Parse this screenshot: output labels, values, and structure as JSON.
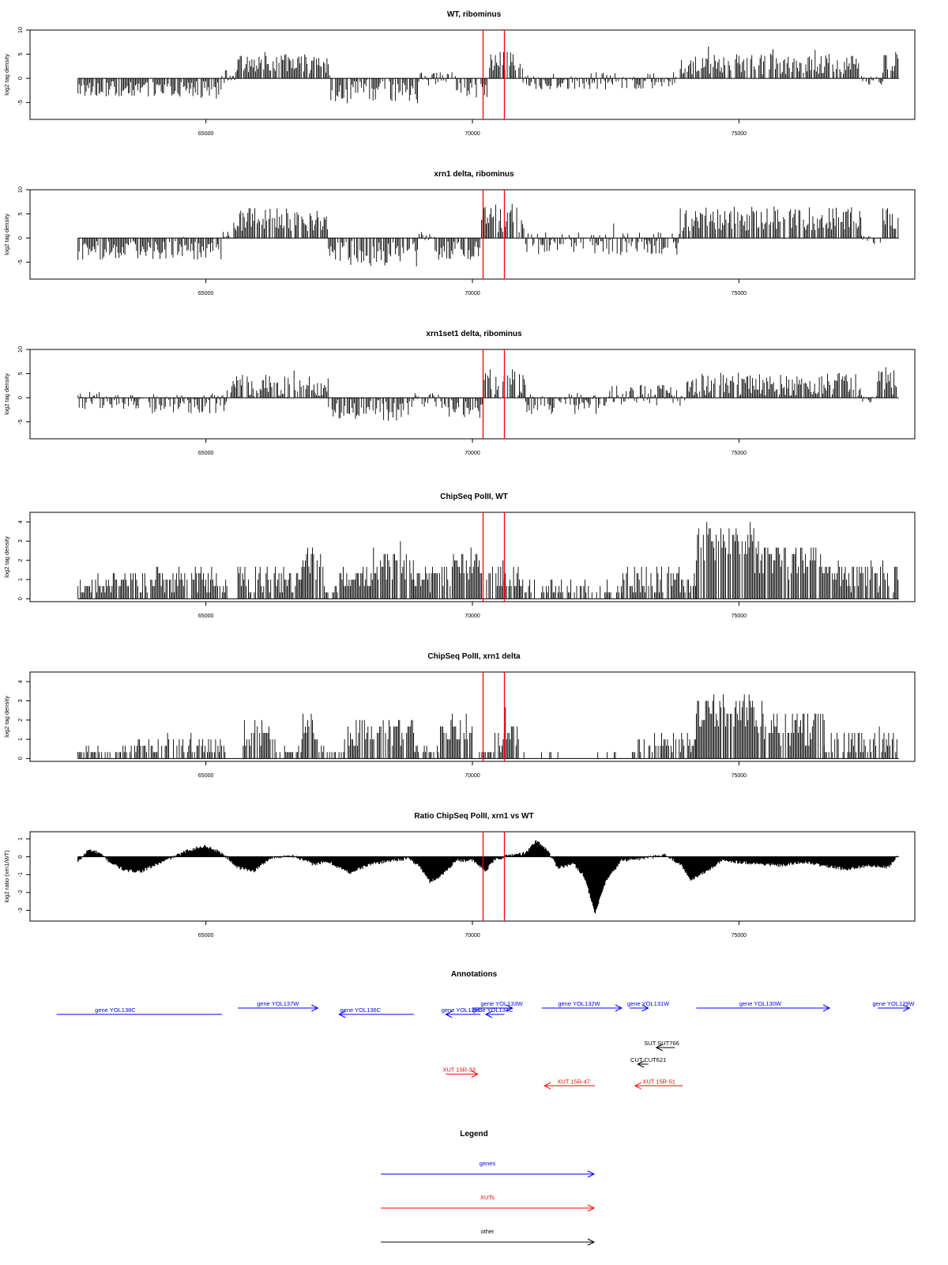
{
  "colors": {
    "bars": "#000000",
    "marker": "#ff0000",
    "genes": "#0000ff",
    "xuts": "#ff0000",
    "other": "#000000"
  },
  "chart_data": [
    {
      "type": "bar",
      "title": "WT, ribominus",
      "ylabel": "log2 tag density",
      "xlim": [
        61700,
        78300
      ],
      "ylim": [
        -8.5,
        10
      ],
      "yticks": [
        -5,
        0,
        5,
        10
      ],
      "xticks": [
        65000,
        70000,
        75000
      ],
      "markers": [
        70200,
        70600
      ],
      "segments": [
        {
          "start": 62600,
          "end": 65300,
          "mean": -2.2,
          "amp": 1.6
        },
        {
          "start": 65300,
          "end": 65600,
          "mean": 0.6,
          "amp": 1.2
        },
        {
          "start": 65600,
          "end": 67300,
          "mean": 3.0,
          "amp": 2.0
        },
        {
          "start": 67300,
          "end": 69000,
          "mean": -3.0,
          "amp": 2.4
        },
        {
          "start": 69000,
          "end": 69700,
          "mean": -0.2,
          "amp": 1.5
        },
        {
          "start": 69700,
          "end": 70300,
          "mean": -2.0,
          "amp": 2.0
        },
        {
          "start": 70300,
          "end": 70950,
          "mean": 3.0,
          "amp": 2.5
        },
        {
          "start": 70950,
          "end": 72300,
          "mean": -0.5,
          "amp": 1.8
        },
        {
          "start": 72300,
          "end": 73900,
          "mean": -0.5,
          "amp": 1.8
        },
        {
          "start": 73900,
          "end": 77300,
          "mean": 3.0,
          "amp": 2.2
        },
        {
          "start": 77300,
          "end": 77700,
          "mean": -0.4,
          "amp": 1.0
        },
        {
          "start": 77700,
          "end": 78000,
          "mean": 3.5,
          "amp": 2.4
        }
      ]
    },
    {
      "type": "bar",
      "title": "xrn1 delta, ribominus",
      "ylabel": "log2 tag density",
      "xlim": [
        61700,
        78300
      ],
      "ylim": [
        -8.5,
        10
      ],
      "yticks": [
        -5,
        0,
        5,
        10
      ],
      "xticks": [
        65000,
        70000,
        75000
      ],
      "markers": [
        70200,
        70600
      ],
      "segments": [
        {
          "start": 62600,
          "end": 65300,
          "mean": -2.6,
          "amp": 2.0
        },
        {
          "start": 65300,
          "end": 65500,
          "mean": 0.8,
          "amp": 1.2
        },
        {
          "start": 65500,
          "end": 67300,
          "mean": 3.8,
          "amp": 2.4
        },
        {
          "start": 67300,
          "end": 69000,
          "mean": -3.4,
          "amp": 2.6
        },
        {
          "start": 69000,
          "end": 69300,
          "mean": 0.3,
          "amp": 1.0
        },
        {
          "start": 69300,
          "end": 70150,
          "mean": -2.6,
          "amp": 2.0
        },
        {
          "start": 70150,
          "end": 71000,
          "mean": 4.2,
          "amp": 3.0
        },
        {
          "start": 71000,
          "end": 73900,
          "mean": -1.2,
          "amp": 2.4
        },
        {
          "start": 73900,
          "end": 77300,
          "mean": 4.0,
          "amp": 2.6
        },
        {
          "start": 77300,
          "end": 77700,
          "mean": -0.5,
          "amp": 1.0
        },
        {
          "start": 77700,
          "end": 78000,
          "mean": 4.0,
          "amp": 2.4
        }
      ]
    },
    {
      "type": "bar",
      "title": "xrn1set1 delta, ribominus",
      "ylabel": "log2 tag density",
      "xlim": [
        61700,
        78300
      ],
      "ylim": [
        -8.5,
        10
      ],
      "yticks": [
        -5,
        0,
        5,
        10
      ],
      "xticks": [
        65000,
        70000,
        75000
      ],
      "markers": [
        70200,
        70600
      ],
      "segments": [
        {
          "start": 62600,
          "end": 63600,
          "mean": -0.6,
          "amp": 1.8
        },
        {
          "start": 63600,
          "end": 65400,
          "mean": -1.2,
          "amp": 2.0
        },
        {
          "start": 65400,
          "end": 67300,
          "mean": 2.4,
          "amp": 2.4
        },
        {
          "start": 67300,
          "end": 68900,
          "mean": -2.6,
          "amp": 2.4
        },
        {
          "start": 68900,
          "end": 69500,
          "mean": -0.6,
          "amp": 1.6
        },
        {
          "start": 69500,
          "end": 70200,
          "mean": -2.0,
          "amp": 2.2
        },
        {
          "start": 70200,
          "end": 71000,
          "mean": 3.2,
          "amp": 2.8
        },
        {
          "start": 71000,
          "end": 72400,
          "mean": -1.2,
          "amp": 2.2
        },
        {
          "start": 72400,
          "end": 74000,
          "mean": 0.5,
          "amp": 2.2
        },
        {
          "start": 74000,
          "end": 77300,
          "mean": 2.8,
          "amp": 2.4
        },
        {
          "start": 77300,
          "end": 77600,
          "mean": -0.3,
          "amp": 1.0
        },
        {
          "start": 77600,
          "end": 78000,
          "mean": 4.0,
          "amp": 2.6
        }
      ]
    },
    {
      "type": "bar",
      "title": "ChipSeq PolII, WT",
      "ylabel": "log2 tag density",
      "xlim": [
        61700,
        78300
      ],
      "ylim": [
        -0.15,
        4.5
      ],
      "yticks": [
        0,
        1,
        2,
        3,
        4
      ],
      "xticks": [
        65000,
        70000,
        75000
      ],
      "markers": [
        70200,
        70600
      ],
      "segments": [
        {
          "start": 62600,
          "end": 63700,
          "mean": 0.7,
          "amp": 0.6
        },
        {
          "start": 63700,
          "end": 65400,
          "mean": 1.0,
          "amp": 0.7
        },
        {
          "start": 65400,
          "end": 65600,
          "mean": 0.0,
          "amp": 0.0
        },
        {
          "start": 65600,
          "end": 66800,
          "mean": 1.1,
          "amp": 0.8
        },
        {
          "start": 66800,
          "end": 67200,
          "mean": 1.8,
          "amp": 0.8
        },
        {
          "start": 67200,
          "end": 67400,
          "mean": 0.3,
          "amp": 0.3
        },
        {
          "start": 67400,
          "end": 68100,
          "mean": 1.0,
          "amp": 0.6
        },
        {
          "start": 68100,
          "end": 68900,
          "mean": 1.7,
          "amp": 0.9
        },
        {
          "start": 68900,
          "end": 69600,
          "mean": 1.0,
          "amp": 0.7
        },
        {
          "start": 69600,
          "end": 70200,
          "mean": 1.7,
          "amp": 0.8
        },
        {
          "start": 70200,
          "end": 70900,
          "mean": 1.2,
          "amp": 0.8
        },
        {
          "start": 70900,
          "end": 72800,
          "mean": 0.3,
          "amp": 0.7
        },
        {
          "start": 72800,
          "end": 74200,
          "mean": 0.9,
          "amp": 0.7
        },
        {
          "start": 74200,
          "end": 75300,
          "mean": 2.9,
          "amp": 1.0
        },
        {
          "start": 75300,
          "end": 76600,
          "mean": 2.0,
          "amp": 0.9
        },
        {
          "start": 76600,
          "end": 78000,
          "mean": 1.1,
          "amp": 0.8
        }
      ]
    },
    {
      "type": "bar",
      "title": "ChipSeq PolII, xrn1 delta",
      "ylabel": "log2 tag density",
      "xlim": [
        61700,
        78300
      ],
      "ylim": [
        -0.15,
        4.5
      ],
      "yticks": [
        0,
        1,
        2,
        3,
        4
      ],
      "xticks": [
        65000,
        70000,
        75000
      ],
      "markers": [
        70200,
        70600
      ],
      "segments": [
        {
          "start": 62600,
          "end": 63000,
          "mean": 0.3,
          "amp": 0.4
        },
        {
          "start": 63000,
          "end": 63400,
          "mean": 0.1,
          "amp": 0.2
        },
        {
          "start": 63400,
          "end": 65400,
          "mean": 0.6,
          "amp": 0.6
        },
        {
          "start": 65400,
          "end": 65700,
          "mean": 0.0,
          "amp": 0.1
        },
        {
          "start": 65700,
          "end": 66300,
          "mean": 1.3,
          "amp": 0.7
        },
        {
          "start": 66300,
          "end": 66800,
          "mean": 0.3,
          "amp": 0.3
        },
        {
          "start": 66800,
          "end": 67100,
          "mean": 1.5,
          "amp": 0.8
        },
        {
          "start": 67100,
          "end": 67600,
          "mean": 0.3,
          "amp": 0.3
        },
        {
          "start": 67600,
          "end": 68900,
          "mean": 1.4,
          "amp": 0.8
        },
        {
          "start": 68900,
          "end": 69400,
          "mean": 0.3,
          "amp": 0.3
        },
        {
          "start": 69400,
          "end": 70000,
          "mean": 1.5,
          "amp": 0.8
        },
        {
          "start": 70000,
          "end": 70400,
          "mean": 0.2,
          "amp": 0.2
        },
        {
          "start": 70400,
          "end": 70900,
          "mean": 1.2,
          "amp": 0.8
        },
        {
          "start": 70900,
          "end": 73000,
          "mean": 0.05,
          "amp": 0.2
        },
        {
          "start": 73000,
          "end": 74200,
          "mean": 0.6,
          "amp": 0.7
        },
        {
          "start": 74200,
          "end": 75300,
          "mean": 2.4,
          "amp": 0.9
        },
        {
          "start": 75300,
          "end": 76600,
          "mean": 1.6,
          "amp": 0.9
        },
        {
          "start": 76600,
          "end": 78000,
          "mean": 0.8,
          "amp": 0.7
        }
      ]
    },
    {
      "type": "area",
      "title": "Ratio ChipSeq PolII, xrn1 vs WT",
      "ylabel": "log2 ratio (xrn1/WT)",
      "xlim": [
        61700,
        78300
      ],
      "ylim": [
        -3.6,
        1.4
      ],
      "yticks": [
        -3,
        -2,
        -1,
        0,
        1
      ],
      "xticks": [
        65000,
        70000,
        75000
      ],
      "markers": [
        70200,
        70600
      ],
      "points": [
        [
          62600,
          -0.3
        ],
        [
          62800,
          0.4
        ],
        [
          63000,
          0.2
        ],
        [
          63200,
          -0.3
        ],
        [
          63500,
          -0.8
        ],
        [
          63800,
          -0.8
        ],
        [
          64100,
          -0.4
        ],
        [
          64400,
          0.0
        ],
        [
          64700,
          0.4
        ],
        [
          65000,
          0.6
        ],
        [
          65300,
          0.2
        ],
        [
          65600,
          -0.6
        ],
        [
          65900,
          -0.8
        ],
        [
          66200,
          -0.1
        ],
        [
          66600,
          0.1
        ],
        [
          67000,
          -0.4
        ],
        [
          67300,
          -0.3
        ],
        [
          67700,
          -0.9
        ],
        [
          68100,
          -0.4
        ],
        [
          68500,
          -0.2
        ],
        [
          68800,
          -0.1
        ],
        [
          69000,
          -0.5
        ],
        [
          69200,
          -1.4
        ],
        [
          69400,
          -1.1
        ],
        [
          69700,
          -0.2
        ],
        [
          70000,
          -0.2
        ],
        [
          70250,
          -0.8
        ],
        [
          70400,
          -0.2
        ],
        [
          70700,
          0.1
        ],
        [
          71000,
          0.2
        ],
        [
          71200,
          0.9
        ],
        [
          71400,
          0.4
        ],
        [
          71600,
          -0.6
        ],
        [
          71900,
          -0.4
        ],
        [
          72100,
          -1.1
        ],
        [
          72300,
          -3.2
        ],
        [
          72500,
          -1.4
        ],
        [
          72800,
          -0.2
        ],
        [
          73200,
          -0.1
        ],
        [
          73600,
          0.1
        ],
        [
          73900,
          -0.4
        ],
        [
          74100,
          -1.3
        ],
        [
          74400,
          -0.8
        ],
        [
          74700,
          -0.2
        ],
        [
          75000,
          -0.3
        ],
        [
          75400,
          -0.4
        ],
        [
          75800,
          -0.5
        ],
        [
          76200,
          -0.3
        ],
        [
          76600,
          -0.5
        ],
        [
          77000,
          -0.7
        ],
        [
          77400,
          -0.5
        ],
        [
          77800,
          -0.6
        ],
        [
          78000,
          0.1
        ]
      ]
    }
  ],
  "annotations": {
    "title": "Annotations",
    "items": [
      {
        "label": "gene YOL138C",
        "start": 65300,
        "end": 62200,
        "row": 0,
        "kind": "genes",
        "label_pos": 63300
      },
      {
        "label": "gene YOL137W",
        "start": 65600,
        "end": 67100,
        "row": -1,
        "kind": "genes",
        "label_pos": 66350
      },
      {
        "label": "gene YOL136C",
        "start": 68900,
        "end": 67500,
        "row": 0,
        "kind": "genes",
        "label_pos": 67900
      },
      {
        "label": "gene YOL135C",
        "start": 70150,
        "end": 69500,
        "row": 0,
        "kind": "genes",
        "label_pos": 69800
      },
      {
        "label": "gene YOL133W",
        "start": 70000,
        "end": 70750,
        "row": -1,
        "kind": "genes",
        "label_pos": 70550
      },
      {
        "label": "gene YOL134C",
        "start": 70600,
        "end": 70250,
        "row": 0,
        "kind": "genes",
        "label_pos": 70380
      },
      {
        "label": "gene YOL132W",
        "start": 71300,
        "end": 72800,
        "row": -1,
        "kind": "genes",
        "label_pos": 72000
      },
      {
        "label": "gene YOL131W",
        "start": 72950,
        "end": 73300,
        "row": -1,
        "kind": "genes",
        "label_pos": 73300
      },
      {
        "label": "gene YOL130W",
        "start": 74200,
        "end": 76700,
        "row": -1,
        "kind": "genes",
        "label_pos": 75400
      },
      {
        "label": "gene YOL129W",
        "start": 77600,
        "end": 78200,
        "row": -1,
        "kind": "genes",
        "label_pos": 77900
      },
      {
        "label": "SUT SUT766",
        "start": 73800,
        "end": 73450,
        "row": 2,
        "kind": "other",
        "label_pos": 73550
      },
      {
        "label": "CUT CUT621",
        "start": 73300,
        "end": 73100,
        "row": 3,
        "kind": "other",
        "label_pos": 73300
      },
      {
        "label": "XUT 15R-33",
        "start": 69500,
        "end": 70100,
        "row": 3.6,
        "kind": "xuts",
        "label_pos": 69750
      },
      {
        "label": "XUT 15R-47",
        "start": 72300,
        "end": 71350,
        "row": 4.3,
        "kind": "xuts",
        "label_pos": 71900
      },
      {
        "label": "XUT 15R-51",
        "start": 73950,
        "end": 73050,
        "row": 4.3,
        "kind": "xuts",
        "label_pos": 73500
      }
    ]
  },
  "legend": {
    "title": "Legend",
    "items": [
      {
        "label": "genes",
        "kind": "genes"
      },
      {
        "label": "XUTs",
        "kind": "xuts"
      },
      {
        "label": "other",
        "kind": "other"
      }
    ]
  }
}
